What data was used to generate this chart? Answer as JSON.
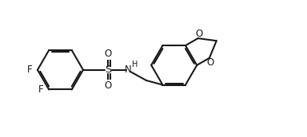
{
  "bg_color": "#ffffff",
  "line_color": "#1a1a1a",
  "line_width": 1.5,
  "dbo": 0.055,
  "font_size": 8.5,
  "fig_width": 3.84,
  "fig_height": 1.72,
  "dpi": 100,
  "xlim": [
    0,
    11
  ],
  "ylim": [
    0,
    4.8
  ]
}
